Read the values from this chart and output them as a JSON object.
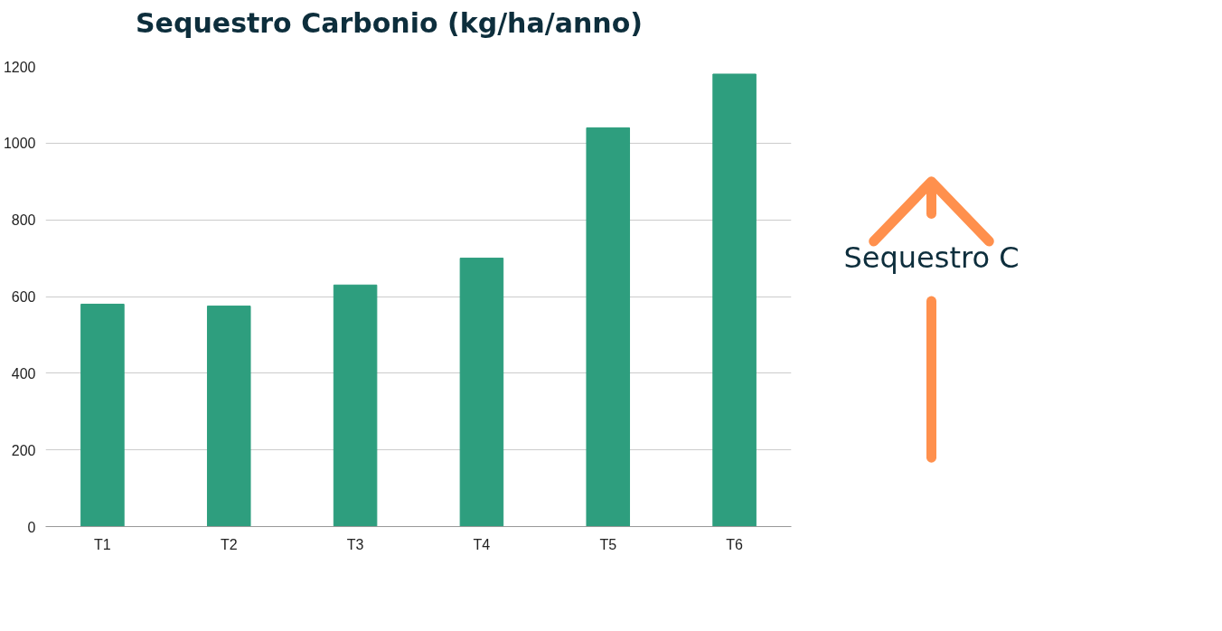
{
  "chart_data": {
    "type": "bar",
    "title": "Sequestro Carbonio (kg/ha/anno)",
    "categories": [
      "T1",
      "T2",
      "T3",
      "T4",
      "T5",
      "T6"
    ],
    "values": [
      580,
      575,
      630,
      700,
      1040,
      1180
    ],
    "color": "#2e9e7e",
    "ylim": [
      0,
      1200
    ],
    "yticks": [
      0,
      200,
      400,
      600,
      800,
      1000,
      1200
    ],
    "grid": "y",
    "annotations": [
      "Sequestro C"
    ]
  }
}
